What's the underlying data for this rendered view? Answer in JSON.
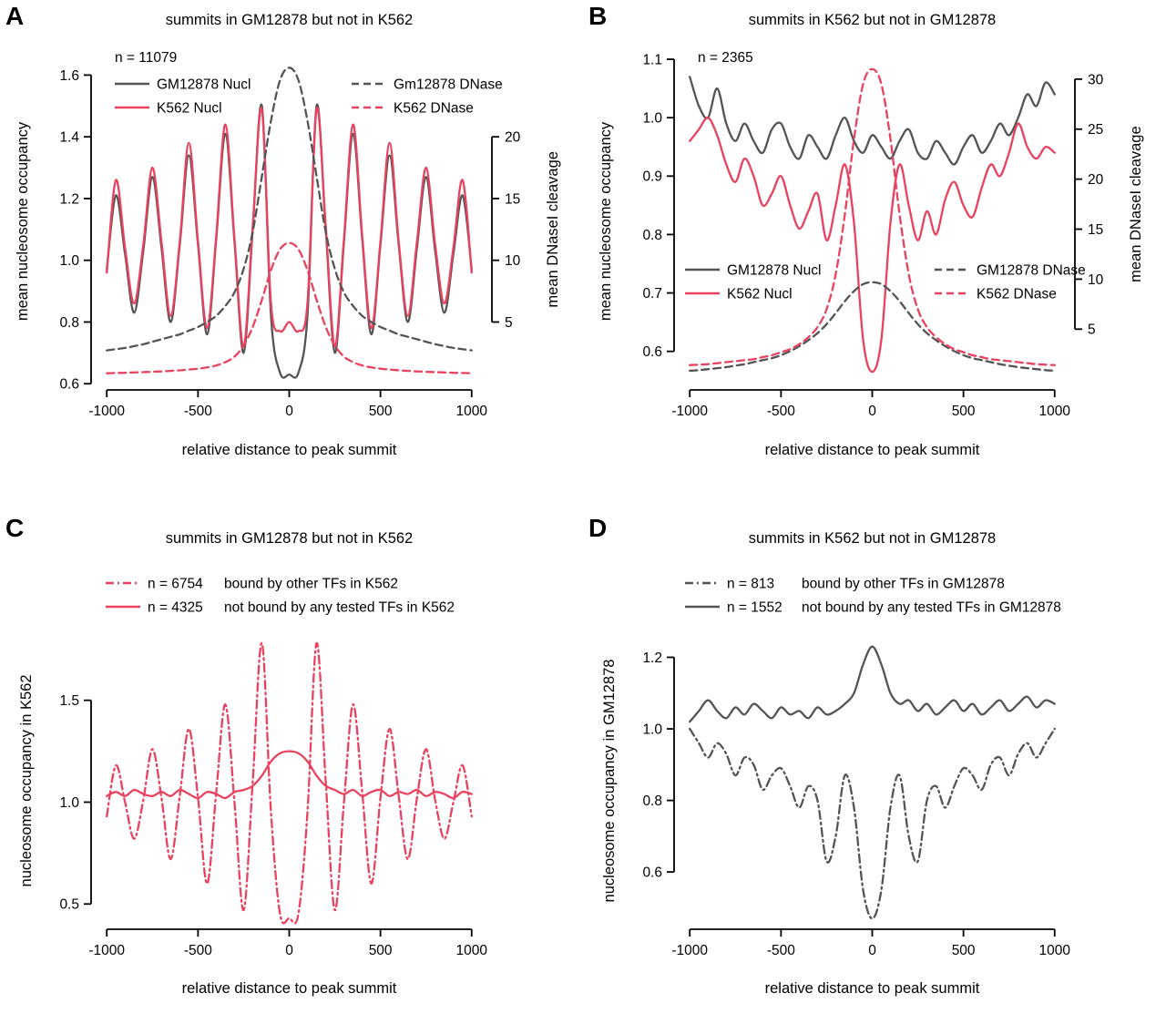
{
  "palette": {
    "gray": "#545454",
    "red": "#e8425f",
    "axis": "#000000",
    "background": "#ffffff"
  },
  "chart_data": [
    {
      "id": "A",
      "type": "line",
      "title": "summits in GM12878 but not in K562",
      "x_axis": {
        "label": "relative distance to peak summit",
        "lim": [
          -1086,
          1086
        ],
        "ticks": {
          "values": [
            -1000,
            -500,
            0,
            500,
            1000
          ],
          "labels": [
            "-1000",
            "-500",
            "0",
            "500",
            "1000"
          ]
        }
      },
      "y_axis": {
        "label": "mean nucleosome occupancy",
        "lim": [
          0.58,
          1.672
        ],
        "ticks": {
          "values": [
            0.6,
            0.8,
            1.0,
            1.2,
            1.4,
            1.6
          ],
          "labels": [
            "0.6",
            "0.8",
            "1.0",
            "1.2",
            "1.4",
            "1.6"
          ]
        }
      },
      "y2_axis": {
        "label": "mean DNaseI cleavage",
        "ticks": {
          "values": [
            5,
            10,
            15,
            20
          ],
          "labels": [
            "5",
            "10",
            "15",
            "20"
          ]
        },
        "left_anchors": [
          [
            5,
            0.8
          ],
          [
            20,
            1.4
          ]
        ]
      },
      "legend": {
        "n_label": "n = 11079",
        "columns": [
          [
            {
              "label": "GM12878 Nucl",
              "color": "gray",
              "dash": "solid"
            },
            {
              "label": "K562 Nucl",
              "color": "red",
              "dash": "solid"
            }
          ],
          [
            {
              "label": "Gm12878 DNase",
              "color": "gray",
              "dash": "dashed"
            },
            {
              "label": "K562 DNase",
              "color": "red",
              "dash": "dashed"
            }
          ]
        ]
      },
      "series": [
        {
          "name": "GM12878 Nucl",
          "color": "gray",
          "dash": "solid",
          "axis": "y",
          "x_start": -1000,
          "x_step": 50,
          "values": [
            0.97,
            1.21,
            1.02,
            0.83,
            1.03,
            1.27,
            1.04,
            0.8,
            1.05,
            1.34,
            1.05,
            0.76,
            1.07,
            1.41,
            1.06,
            0.7,
            1.1,
            1.5,
            0.82,
            0.635,
            0.63,
            0.635,
            0.82,
            1.5,
            1.1,
            0.7,
            1.06,
            1.41,
            1.07,
            0.76,
            1.05,
            1.34,
            1.05,
            0.8,
            1.04,
            1.27,
            1.03,
            0.83,
            1.02,
            1.21,
            0.97
          ]
        },
        {
          "name": "K562 Nucl",
          "color": "red",
          "dash": "solid",
          "axis": "y",
          "x_start": -1000,
          "x_step": 50,
          "values": [
            0.96,
            1.26,
            1.04,
            0.86,
            1.05,
            1.3,
            1.06,
            0.82,
            1.06,
            1.38,
            1.06,
            0.78,
            1.08,
            1.44,
            1.07,
            0.72,
            1.11,
            1.49,
            0.86,
            0.77,
            0.8,
            0.77,
            0.86,
            1.49,
            1.11,
            0.72,
            1.07,
            1.44,
            1.08,
            0.78,
            1.06,
            1.38,
            1.06,
            0.82,
            1.06,
            1.3,
            1.05,
            0.86,
            1.04,
            1.26,
            0.96
          ]
        },
        {
          "name": "GM12878 DNase",
          "color": "gray",
          "dash": "dashed",
          "axis": "y2",
          "x_start": -1000,
          "x_step": 50,
          "values": [
            2.7,
            2.8,
            2.9,
            3.05,
            3.2,
            3.4,
            3.6,
            3.8,
            4.0,
            4.3,
            4.6,
            5.0,
            5.5,
            6.3,
            7.4,
            9.3,
            12.3,
            16.8,
            21.3,
            24.6,
            25.6,
            24.6,
            21.3,
            16.8,
            12.3,
            9.3,
            7.4,
            6.3,
            5.5,
            5.0,
            4.6,
            4.3,
            4.0,
            3.8,
            3.6,
            3.4,
            3.2,
            3.05,
            2.9,
            2.8,
            2.7
          ]
        },
        {
          "name": "K562 DNase",
          "color": "red",
          "dash": "dashed",
          "axis": "y2",
          "x_start": -1000,
          "x_step": 50,
          "values": [
            0.85,
            0.87,
            0.89,
            0.92,
            0.94,
            0.97,
            1.0,
            1.04,
            1.09,
            1.15,
            1.22,
            1.32,
            1.48,
            1.75,
            2.2,
            3.1,
            4.6,
            6.8,
            9.2,
            10.9,
            11.4,
            10.9,
            9.2,
            6.8,
            4.6,
            3.1,
            2.2,
            1.75,
            1.48,
            1.32,
            1.22,
            1.15,
            1.09,
            1.04,
            1.0,
            0.97,
            0.94,
            0.92,
            0.89,
            0.87,
            0.85
          ]
        }
      ]
    },
    {
      "id": "B",
      "type": "line",
      "title": "summits in K562 but not in GM12878",
      "x_axis": {
        "label": "relative distance to peak summit",
        "lim": [
          -1086,
          1086
        ],
        "ticks": {
          "values": [
            -1000,
            -500,
            0,
            500,
            1000
          ],
          "labels": [
            "-1000",
            "-500",
            "0",
            "500",
            "1000"
          ]
        }
      },
      "y_axis": {
        "label": "mean nucleosome occupancy",
        "lim": [
          0.534,
          1.111
        ],
        "ticks": {
          "values": [
            0.6,
            0.7,
            0.8,
            0.9,
            1.0,
            1.1
          ],
          "labels": [
            "0.6",
            "0.7",
            "0.8",
            "0.9",
            "1.0",
            "1.1"
          ]
        }
      },
      "y2_axis": {
        "label": "mean DNaseI cleavage",
        "ticks": {
          "values": [
            5,
            10,
            15,
            20,
            25,
            30
          ],
          "labels": [
            "5",
            "10",
            "15",
            "20",
            "25",
            "30"
          ]
        },
        "left_anchors": [
          [
            5,
            0.638
          ],
          [
            30,
            1.066
          ]
        ]
      },
      "legend": {
        "n_label": "n = 2365",
        "columns": [
          [
            {
              "label": "GM12878 Nucl",
              "color": "gray",
              "dash": "solid"
            },
            {
              "label": "K562 Nucl",
              "color": "red",
              "dash": "solid"
            }
          ],
          [
            {
              "label": "GM12878 DNase",
              "color": "gray",
              "dash": "dashed"
            },
            {
              "label": "K562 DNase",
              "color": "red",
              "dash": "dashed"
            }
          ]
        ]
      },
      "series": [
        {
          "name": "GM12878 Nucl",
          "color": "gray",
          "dash": "solid",
          "axis": "y",
          "x_start": -1000,
          "x_step": 50,
          "values": [
            1.07,
            1.02,
            1.0,
            1.05,
            0.99,
            0.96,
            0.99,
            0.96,
            0.94,
            0.98,
            0.99,
            0.95,
            0.93,
            0.97,
            0.95,
            0.93,
            0.97,
            1.0,
            0.96,
            0.94,
            0.97,
            0.95,
            0.93,
            0.96,
            0.98,
            0.94,
            0.93,
            0.96,
            0.94,
            0.92,
            0.95,
            0.97,
            0.94,
            0.96,
            0.99,
            0.97,
            1.0,
            1.04,
            1.02,
            1.06,
            1.04
          ]
        },
        {
          "name": "K562 Nucl",
          "color": "red",
          "dash": "solid",
          "axis": "y",
          "x_start": -1000,
          "x_step": 50,
          "values": [
            0.96,
            0.98,
            1.0,
            0.97,
            0.92,
            0.89,
            0.93,
            0.9,
            0.85,
            0.87,
            0.9,
            0.85,
            0.81,
            0.84,
            0.87,
            0.79,
            0.85,
            0.92,
            0.82,
            0.62,
            0.565,
            0.62,
            0.82,
            0.92,
            0.85,
            0.79,
            0.84,
            0.8,
            0.86,
            0.89,
            0.85,
            0.83,
            0.88,
            0.92,
            0.9,
            0.94,
            0.99,
            0.95,
            0.93,
            0.95,
            0.94
          ]
        },
        {
          "name": "GM12878 DNase",
          "color": "gray",
          "dash": "dashed",
          "axis": "y2",
          "x_start": -1000,
          "x_step": 50,
          "values": [
            0.85,
            0.9,
            1.0,
            1.1,
            1.2,
            1.35,
            1.5,
            1.7,
            1.9,
            2.1,
            2.4,
            2.8,
            3.3,
            3.9,
            4.6,
            5.5,
            6.6,
            7.8,
            8.8,
            9.5,
            9.7,
            9.5,
            8.8,
            7.8,
            6.6,
            5.5,
            4.6,
            3.9,
            3.3,
            2.8,
            2.4,
            2.1,
            1.9,
            1.7,
            1.5,
            1.35,
            1.2,
            1.1,
            1.0,
            0.9,
            0.85
          ]
        },
        {
          "name": "K562 DNase",
          "color": "red",
          "dash": "dashed",
          "axis": "y2",
          "x_start": -1000,
          "x_step": 50,
          "values": [
            1.4,
            1.45,
            1.5,
            1.6,
            1.7,
            1.8,
            1.9,
            2.0,
            2.2,
            2.4,
            2.7,
            3.0,
            3.5,
            4.2,
            5.2,
            7.0,
            10.5,
            16.5,
            24.0,
            29.5,
            31.0,
            29.5,
            24.0,
            16.5,
            10.5,
            7.0,
            5.2,
            4.2,
            3.5,
            3.0,
            2.7,
            2.4,
            2.2,
            2.0,
            1.9,
            1.8,
            1.7,
            1.6,
            1.5,
            1.45,
            1.4
          ]
        }
      ]
    },
    {
      "id": "C",
      "type": "line",
      "title": "summits in GM12878 but not in K562",
      "x_axis": {
        "label": "relative distance to peak summit",
        "lim": [
          -1086,
          1086
        ],
        "ticks": {
          "values": [
            -1000,
            -500,
            0,
            500,
            1000
          ],
          "labels": [
            "-1000",
            "-500",
            "0",
            "500",
            "1000"
          ]
        }
      },
      "y_axis": {
        "label": "nucleosome occupancy in K562",
        "lim": [
          0.376,
          1.834
        ],
        "ticks": {
          "values": [
            0.5,
            1.0,
            1.5
          ],
          "labels": [
            "0.5",
            "1.0",
            "1.5"
          ]
        }
      },
      "legend": {
        "items": [
          {
            "n": "n = 6754",
            "label": "bound by other TFs in K562",
            "color": "red",
            "dash": "dashdot"
          },
          {
            "n": "n = 4325",
            "label": "not bound by any tested TFs in K562",
            "color": "red",
            "dash": "solid"
          }
        ]
      },
      "series": [
        {
          "name": "bound by other TFs in K562",
          "color": "red",
          "dash": "dashdot",
          "axis": "y",
          "x_start": -1000,
          "x_step": 50,
          "values": [
            0.93,
            1.18,
            1.0,
            0.82,
            1.01,
            1.26,
            1.02,
            0.72,
            1.03,
            1.36,
            1.02,
            0.6,
            1.05,
            1.48,
            1.0,
            0.47,
            1.1,
            1.78,
            0.95,
            0.45,
            0.43,
            0.45,
            0.95,
            1.78,
            1.1,
            0.47,
            1.0,
            1.48,
            1.05,
            0.6,
            1.02,
            1.36,
            1.03,
            0.72,
            1.02,
            1.26,
            1.01,
            0.82,
            1.0,
            1.18,
            0.93
          ]
        },
        {
          "name": "not bound by any tested TFs in K562",
          "color": "red",
          "dash": "solid",
          "axis": "y",
          "x_start": -1000,
          "x_step": 50,
          "values": [
            1.03,
            1.05,
            1.03,
            1.06,
            1.04,
            1.03,
            1.05,
            1.03,
            1.06,
            1.04,
            1.02,
            1.05,
            1.04,
            1.02,
            1.05,
            1.06,
            1.08,
            1.13,
            1.2,
            1.24,
            1.25,
            1.24,
            1.2,
            1.13,
            1.08,
            1.06,
            1.04,
            1.06,
            1.03,
            1.05,
            1.06,
            1.03,
            1.05,
            1.04,
            1.06,
            1.03,
            1.05,
            1.04,
            1.02,
            1.05,
            1.04
          ]
        }
      ]
    },
    {
      "id": "D",
      "type": "line",
      "title": "summits in K562 but not in GM12878",
      "x_axis": {
        "label": "relative distance to peak summit",
        "lim": [
          -1086,
          1086
        ],
        "ticks": {
          "values": [
            -1000,
            -500,
            0,
            500,
            1000
          ],
          "labels": [
            "-1000",
            "-500",
            "0",
            "500",
            "1000"
          ]
        }
      },
      "y_axis": {
        "label": "nucleosome occupancy in GM12878",
        "lim": [
          0.44,
          1.27
        ],
        "ticks": {
          "values": [
            0.6,
            0.8,
            1.0,
            1.2
          ],
          "labels": [
            "0.6",
            "0.8",
            "1.0",
            "1.2"
          ]
        }
      },
      "legend": {
        "items": [
          {
            "n": "n = 813",
            "label": "bound by other TFs in GM12878",
            "color": "gray",
            "dash": "dashdot"
          },
          {
            "n": "n = 1552",
            "label": "not bound by any tested TFs in GM12878",
            "color": "gray",
            "dash": "solid"
          }
        ]
      },
      "series": [
        {
          "name": "bound by other TFs in GM12878",
          "color": "gray",
          "dash": "dashdot",
          "axis": "y",
          "x_start": -1000,
          "x_step": 50,
          "values": [
            1.0,
            0.96,
            0.92,
            0.96,
            0.93,
            0.87,
            0.92,
            0.9,
            0.83,
            0.87,
            0.89,
            0.84,
            0.78,
            0.84,
            0.8,
            0.63,
            0.7,
            0.87,
            0.78,
            0.55,
            0.47,
            0.55,
            0.78,
            0.87,
            0.7,
            0.63,
            0.8,
            0.84,
            0.78,
            0.84,
            0.89,
            0.87,
            0.83,
            0.9,
            0.92,
            0.87,
            0.93,
            0.96,
            0.92,
            0.96,
            1.0
          ]
        },
        {
          "name": "not bound by any tested TFs in GM12878",
          "color": "gray",
          "dash": "solid",
          "axis": "y",
          "x_start": -1000,
          "x_step": 50,
          "values": [
            1.02,
            1.05,
            1.08,
            1.05,
            1.03,
            1.06,
            1.04,
            1.07,
            1.05,
            1.03,
            1.06,
            1.04,
            1.05,
            1.03,
            1.06,
            1.04,
            1.05,
            1.07,
            1.1,
            1.18,
            1.23,
            1.18,
            1.1,
            1.07,
            1.08,
            1.05,
            1.07,
            1.04,
            1.06,
            1.08,
            1.05,
            1.07,
            1.04,
            1.06,
            1.08,
            1.05,
            1.07,
            1.09,
            1.06,
            1.08,
            1.07
          ]
        }
      ]
    }
  ]
}
